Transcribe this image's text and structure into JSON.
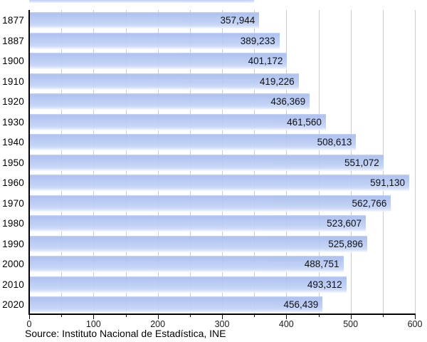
{
  "chart_data": {
    "type": "bar",
    "orientation": "horizontal",
    "title": "",
    "categories": [
      "1877",
      "1887",
      "1900",
      "1910",
      "1920",
      "1930",
      "1940",
      "1950",
      "1960",
      "1970",
      "1980",
      "1990",
      "2000",
      "2010",
      "2020"
    ],
    "values": [
      357944,
      389233,
      401172,
      419226,
      436369,
      461560,
      508613,
      551072,
      591130,
      562766,
      523607,
      525896,
      488751,
      493312,
      456439
    ],
    "value_labels": [
      "357,944",
      "389,233",
      "401,172",
      "419,226",
      "436,369",
      "461,560",
      "508,613",
      "551,072",
      "591,130",
      "562,766",
      "523,607",
      "525,896",
      "488,751",
      "493,312",
      "456,439"
    ],
    "xlabel": "",
    "ylabel": "",
    "x_axis": {
      "range": [
        0,
        600
      ],
      "tick_labels": [
        "0",
        "100",
        "200",
        "300",
        "400",
        "500",
        "600"
      ],
      "major_tick_step": 100,
      "minor_tick_step": 50,
      "scale_note": "axis units are thousands of inhabitants"
    },
    "grid": {
      "vertical_step": 50,
      "color": "#cccccc"
    },
    "legend": "none",
    "bar_color": "#b6c8f3",
    "bar_edge_top_color": "#a9beee",
    "label_position": "inside-end",
    "source": "Source: Instituto Nacional de Estadística, INE"
  }
}
